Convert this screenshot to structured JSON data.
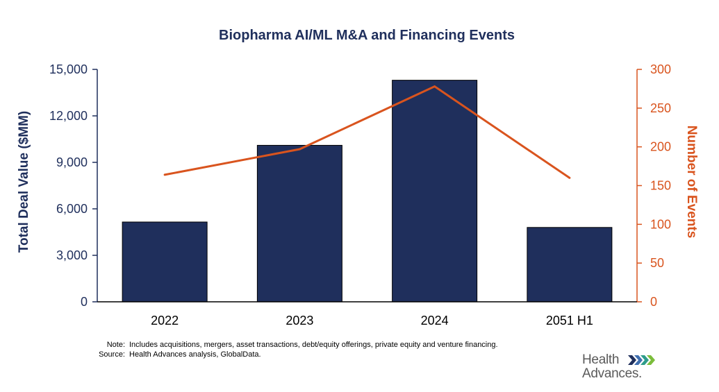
{
  "chart_data": {
    "type": "bar+line",
    "title": "Biopharma AI/ML M&A and Financing Events",
    "categories": [
      "2022",
      "2023",
      "2024",
      "2051 H1"
    ],
    "series": [
      {
        "name": "Total Deal Value ($MM)",
        "type": "bar",
        "axis": "left",
        "values": [
          5150,
          10100,
          14300,
          4800
        ]
      },
      {
        "name": "Number of Events",
        "type": "line",
        "axis": "right",
        "values": [
          164,
          197,
          278,
          160
        ]
      }
    ],
    "ylabel": "Total Deal Value ($MM)",
    "ylim": [
      0,
      15000
    ],
    "yticks": [
      "0",
      "3,000",
      "6,000",
      "9,000",
      "12,000",
      "15,000"
    ],
    "y2label": "Number of Events",
    "y2lim": [
      0,
      300
    ],
    "y2ticks": [
      "0",
      "50",
      "100",
      "150",
      "200",
      "250",
      "300"
    ],
    "colors": {
      "bar": "#1f2f5c",
      "line": "#d9541e",
      "title": "#1f2f5c"
    }
  },
  "notes": {
    "note_label": "Note:",
    "note_text": "Includes acquisitions, mergers, asset transactions, debt/equity offerings, private equity and venture financing.",
    "source_label": "Source:",
    "source_text": "Health Advances analysis, GlobalData."
  },
  "logo": {
    "word1": "Health",
    "word2": "Advances",
    "suffix": "."
  }
}
